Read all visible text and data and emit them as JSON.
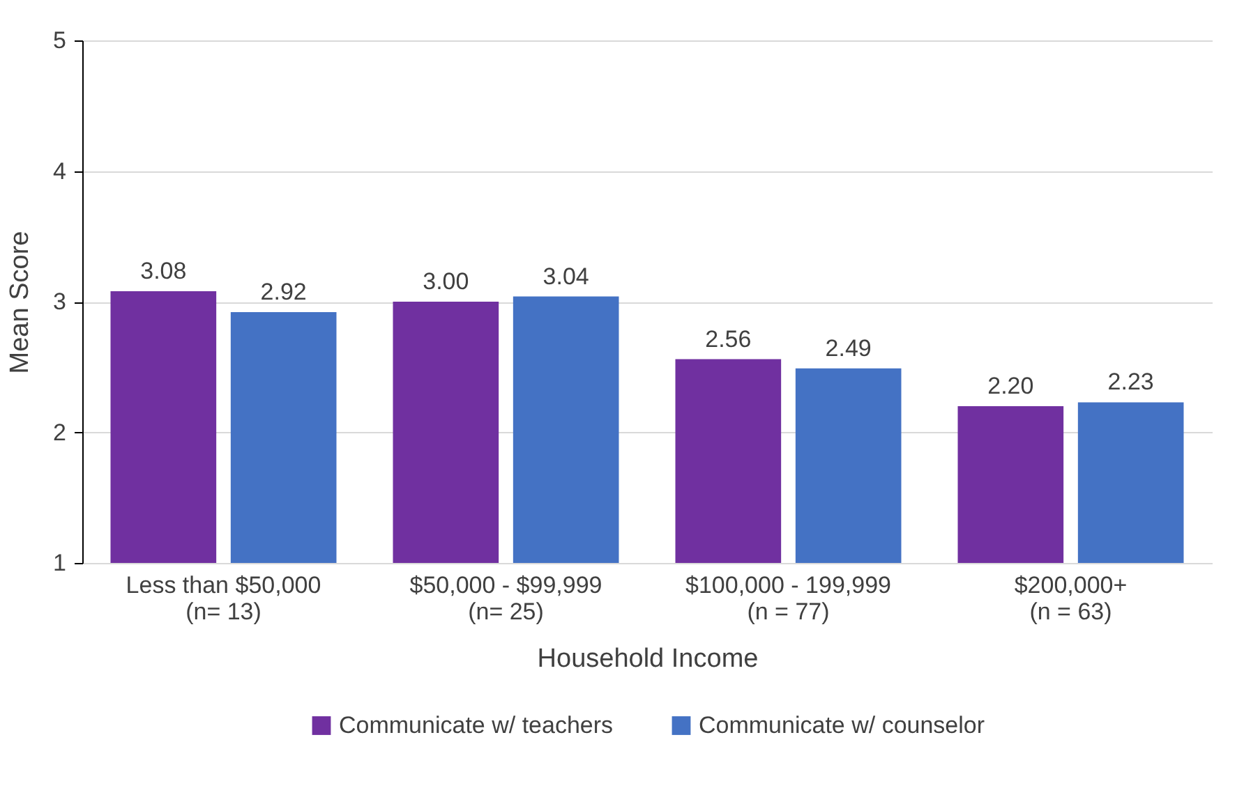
{
  "chart_data": {
    "type": "bar",
    "xlabel": "Household Income",
    "ylabel": "Mean Score",
    "categories": [
      "Less than $50,000\n(n= 13)",
      "$50,000 - $99,999\n(n= 25)",
      "$100,000 - 199,999\n(n = 77)",
      "$200,000+\n(n = 63)"
    ],
    "series": [
      {
        "name": "Communicate w/ teachers",
        "color": "#7030a0",
        "values": [
          3.08,
          3.0,
          2.56,
          2.2
        ],
        "value_labels": [
          "3.08",
          "3.00",
          "2.56",
          "2.20"
        ]
      },
      {
        "name": "Communicate w/ counselor",
        "color": "#4472c4",
        "values": [
          2.92,
          3.04,
          2.49,
          2.23
        ],
        "value_labels": [
          "2.92",
          "3.04",
          "2.49",
          "2.23"
        ]
      }
    ],
    "ylim": [
      1,
      5
    ],
    "yticks": [
      1,
      2,
      3,
      4,
      5
    ],
    "grid": "y",
    "legend": "bottom"
  }
}
